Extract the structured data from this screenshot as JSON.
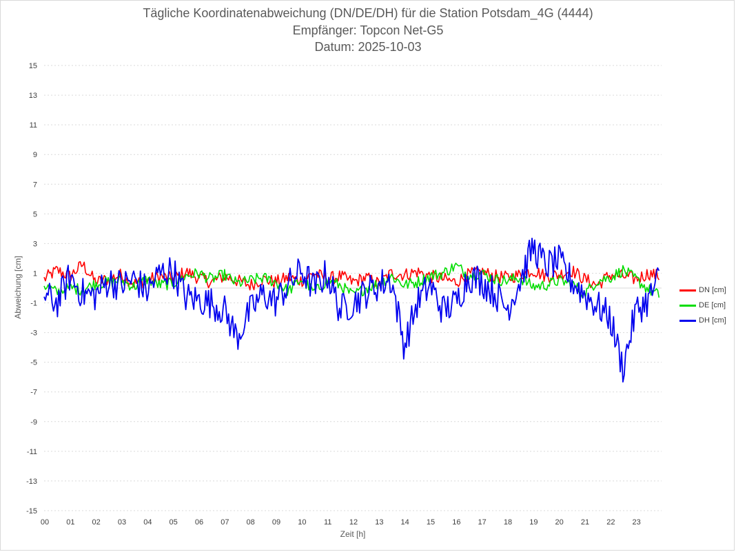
{
  "title": {
    "line1": "Tägliche Koordinatenabweichung (DN/DE/DH) für die Station Potsdam_4G (4444)",
    "line2": "Empfänger: Topcon Net-G5",
    "line3": "Datum: 2025-10-03"
  },
  "chart_data": {
    "type": "line",
    "title": "Tägliche Koordinatenabweichung (DN/DE/DH) für die Station Potsdam_4G (4444)",
    "subtitle": [
      "Empfänger: Topcon Net-G5",
      "Datum: 2025-10-03"
    ],
    "xlabel": "Zeit [h]",
    "ylabel": "Abweichung [cm]",
    "xlim": [
      0,
      24
    ],
    "ylim": [
      -15,
      15
    ],
    "yticks": [
      15,
      13,
      11,
      9,
      7,
      5,
      3,
      1,
      -1,
      -3,
      -5,
      -7,
      -9,
      -11,
      -13,
      -15
    ],
    "xticks": [
      "00",
      "01",
      "02",
      "03",
      "04",
      "05",
      "06",
      "07",
      "08",
      "09",
      "10",
      "11",
      "12",
      "13",
      "14",
      "15",
      "16",
      "17",
      "18",
      "19",
      "20",
      "21",
      "22",
      "23"
    ],
    "grid": "horizontal dotted",
    "legend_position": "right",
    "x": [
      0,
      0.5,
      1,
      1.5,
      2,
      2.5,
      3,
      3.5,
      4,
      4.5,
      5,
      5.5,
      6,
      6.5,
      7,
      7.5,
      8,
      8.5,
      9,
      9.5,
      10,
      10.5,
      11,
      11.5,
      12,
      12.5,
      13,
      13.5,
      14,
      14.5,
      15,
      15.5,
      16,
      16.5,
      17,
      17.5,
      18,
      18.5,
      19,
      19.5,
      20,
      20.5,
      21,
      21.5,
      22,
      22.5,
      23,
      23.5,
      23.9
    ],
    "series": [
      {
        "name": "DN [cm]",
        "color": "#ff0000",
        "values": [
          0.6,
          1.2,
          0.8,
          1.6,
          0.4,
          0.6,
          0.9,
          0.3,
          0.5,
          0.8,
          0.6,
          1.1,
          0.7,
          0.4,
          0.8,
          0.5,
          0.2,
          0.6,
          0.4,
          0.7,
          0.5,
          1.0,
          0.6,
          0.8,
          0.4,
          0.7,
          0.3,
          1.0,
          0.9,
          1.1,
          0.8,
          0.6,
          0.4,
          0.9,
          1.1,
          0.8,
          0.7,
          0.9,
          1.2,
          0.8,
          0.9,
          1.2,
          0.6,
          0.2,
          0.9,
          0.8,
          0.6,
          1.0,
          0.8
        ]
      },
      {
        "name": "DE [cm]",
        "color": "#00dd00",
        "values": [
          0.2,
          -0.3,
          0.0,
          -0.1,
          0.3,
          0.4,
          0.5,
          0.1,
          0.6,
          0.2,
          0.3,
          0.8,
          1.0,
          0.6,
          0.9,
          0.3,
          0.5,
          0.7,
          0.4,
          -0.2,
          0.6,
          -0.3,
          0.5,
          0.2,
          -0.5,
          0.0,
          0.3,
          0.8,
          0.2,
          0.4,
          0.8,
          1.0,
          1.5,
          0.9,
          1.0,
          0.6,
          0.5,
          0.7,
          0.1,
          0.2,
          0.5,
          0.3,
          -0.4,
          0.5,
          0.7,
          1.2,
          0.6,
          -0.1,
          -0.5
        ]
      },
      {
        "name": "DH [cm]",
        "color": "#0000ee",
        "values": [
          -0.5,
          -1.0,
          0.8,
          -0.4,
          -0.5,
          0.5,
          0.2,
          0.6,
          -0.2,
          1.0,
          1.2,
          -0.6,
          -0.8,
          -1.0,
          -1.5,
          -3.3,
          -1.6,
          -0.4,
          -0.9,
          0.2,
          1.2,
          0.0,
          1.0,
          -1.5,
          -1.0,
          -0.3,
          0.2,
          0.6,
          -3.9,
          -1.0,
          0.2,
          -1.5,
          -1.0,
          0.8,
          0.5,
          -0.3,
          -1.4,
          0.5,
          2.8,
          1.5,
          1.8,
          0.5,
          -0.4,
          -1.2,
          -2.0,
          -5.4,
          -1.5,
          -0.8,
          0.7
        ]
      }
    ]
  },
  "legend": {
    "dn": "DN [cm]",
    "de": "DE [cm]",
    "dh": "DH [cm]"
  },
  "colors": {
    "dn": "#ff0000",
    "de": "#00dd00",
    "dh": "#0000ee"
  }
}
